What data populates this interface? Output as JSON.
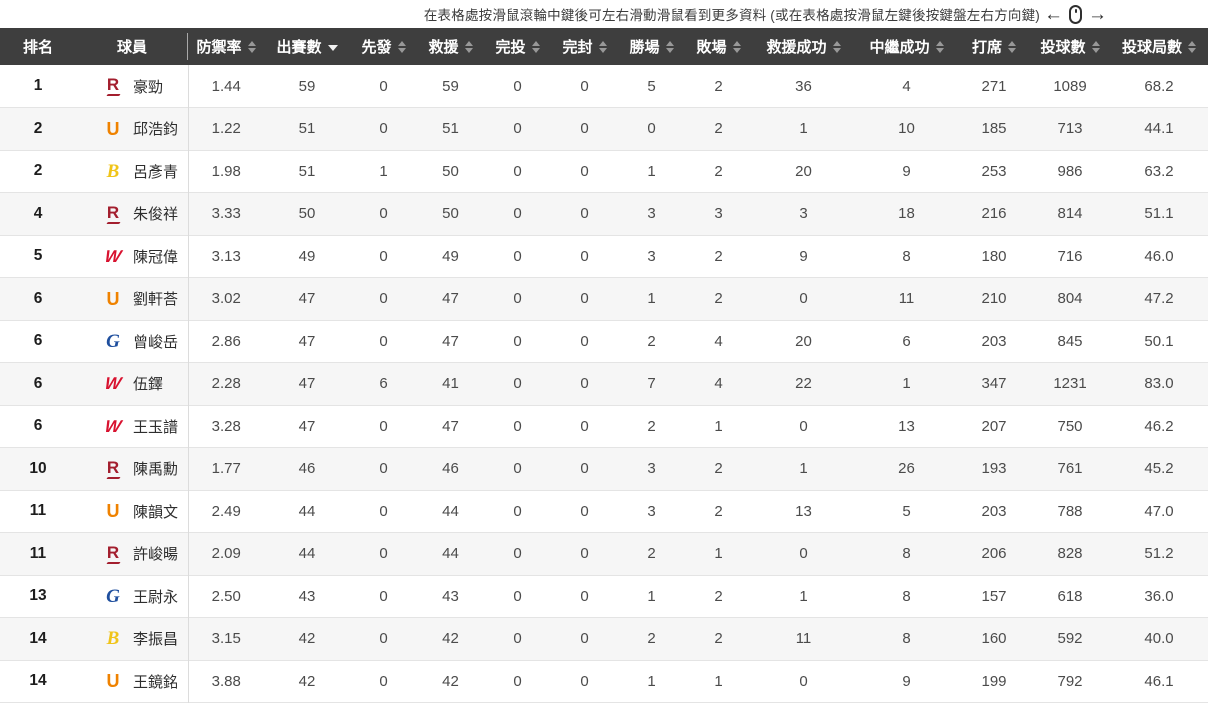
{
  "scroll_hint": {
    "text": "在表格處按滑鼠滾輪中鍵後可左右滑動滑鼠看到更多資料 (或在表格處按滑鼠左鍵後按鍵盤左右方向鍵)",
    "left_arrow": "←",
    "right_arrow": "→",
    "mouse_icon": "mouse-scroll-icon"
  },
  "table": {
    "header_bg": "#3e3e3e",
    "header_text_color": "#ffffff",
    "sorted_column": "出賽數",
    "sort_direction": "desc",
    "columns": [
      {
        "key": "rank",
        "label": "排名",
        "sortable": false
      },
      {
        "key": "player",
        "label": "球員",
        "sortable": false
      },
      {
        "key": "era",
        "label": "防禦率",
        "sortable": true
      },
      {
        "key": "games",
        "label": "出賽數",
        "sortable": true,
        "sorted": "desc"
      },
      {
        "key": "starts",
        "label": "先發",
        "sortable": true
      },
      {
        "key": "relief",
        "label": "救援",
        "sortable": true
      },
      {
        "key": "cg",
        "label": "完投",
        "sortable": true
      },
      {
        "key": "sho",
        "label": "完封",
        "sortable": true
      },
      {
        "key": "wins",
        "label": "勝場",
        "sortable": true
      },
      {
        "key": "losses",
        "label": "敗場",
        "sortable": true
      },
      {
        "key": "saves",
        "label": "救援成功",
        "sortable": true
      },
      {
        "key": "holds",
        "label": "中繼成功",
        "sortable": true
      },
      {
        "key": "bf",
        "label": "打席",
        "sortable": true
      },
      {
        "key": "pitches",
        "label": "投球數",
        "sortable": true
      },
      {
        "key": "ip",
        "label": "投球局數",
        "sortable": true
      }
    ],
    "teams": {
      "rakuten": {
        "letter": "R",
        "color": "#a31e2e"
      },
      "unilions": {
        "letter": "U",
        "color": "#ef8200"
      },
      "brothers": {
        "letter": "B",
        "color": "#f0c419"
      },
      "dragons": {
        "letter": "W",
        "color": "#d8122f"
      },
      "guardians": {
        "letter": "G",
        "color": "#1f4f9e"
      }
    },
    "rows": [
      {
        "rank": "1",
        "team": "rakuten",
        "player": "豪勁",
        "stats": [
          "1.44",
          "59",
          "0",
          "59",
          "0",
          "0",
          "5",
          "2",
          "36",
          "4",
          "271",
          "1089",
          "68.2"
        ]
      },
      {
        "rank": "2",
        "team": "unilions",
        "player": "邱浩鈞",
        "stats": [
          "1.22",
          "51",
          "0",
          "51",
          "0",
          "0",
          "0",
          "2",
          "1",
          "10",
          "185",
          "713",
          "44.1"
        ]
      },
      {
        "rank": "2",
        "team": "brothers",
        "player": "呂彥青",
        "stats": [
          "1.98",
          "51",
          "1",
          "50",
          "0",
          "0",
          "1",
          "2",
          "20",
          "9",
          "253",
          "986",
          "63.2"
        ]
      },
      {
        "rank": "4",
        "team": "rakuten",
        "player": "朱俊祥",
        "stats": [
          "3.33",
          "50",
          "0",
          "50",
          "0",
          "0",
          "3",
          "3",
          "3",
          "18",
          "216",
          "814",
          "51.1"
        ]
      },
      {
        "rank": "5",
        "team": "dragons",
        "player": "陳冠偉",
        "stats": [
          "3.13",
          "49",
          "0",
          "49",
          "0",
          "0",
          "3",
          "2",
          "9",
          "8",
          "180",
          "716",
          "46.0"
        ]
      },
      {
        "rank": "6",
        "team": "unilions",
        "player": "劉軒荅",
        "stats": [
          "3.02",
          "47",
          "0",
          "47",
          "0",
          "0",
          "1",
          "2",
          "0",
          "11",
          "210",
          "804",
          "47.2"
        ]
      },
      {
        "rank": "6",
        "team": "guardians",
        "player": "曾峻岳",
        "stats": [
          "2.86",
          "47",
          "0",
          "47",
          "0",
          "0",
          "2",
          "4",
          "20",
          "6",
          "203",
          "845",
          "50.1"
        ]
      },
      {
        "rank": "6",
        "team": "dragons",
        "player": "伍鐸",
        "stats": [
          "2.28",
          "47",
          "6",
          "41",
          "0",
          "0",
          "7",
          "4",
          "22",
          "1",
          "347",
          "1231",
          "83.0"
        ]
      },
      {
        "rank": "6",
        "team": "dragons",
        "player": "王玉譜",
        "stats": [
          "3.28",
          "47",
          "0",
          "47",
          "0",
          "0",
          "2",
          "1",
          "0",
          "13",
          "207",
          "750",
          "46.2"
        ]
      },
      {
        "rank": "10",
        "team": "rakuten",
        "player": "陳禹勳",
        "stats": [
          "1.77",
          "46",
          "0",
          "46",
          "0",
          "0",
          "3",
          "2",
          "1",
          "26",
          "193",
          "761",
          "45.2"
        ]
      },
      {
        "rank": "11",
        "team": "unilions",
        "player": "陳韻文",
        "stats": [
          "2.49",
          "44",
          "0",
          "44",
          "0",
          "0",
          "3",
          "2",
          "13",
          "5",
          "203",
          "788",
          "47.0"
        ]
      },
      {
        "rank": "11",
        "team": "rakuten",
        "player": "許峻暘",
        "stats": [
          "2.09",
          "44",
          "0",
          "44",
          "0",
          "0",
          "2",
          "1",
          "0",
          "8",
          "206",
          "828",
          "51.2"
        ]
      },
      {
        "rank": "13",
        "team": "guardians",
        "player": "王尉永",
        "stats": [
          "2.50",
          "43",
          "0",
          "43",
          "0",
          "0",
          "1",
          "2",
          "1",
          "8",
          "157",
          "618",
          "36.0"
        ]
      },
      {
        "rank": "14",
        "team": "brothers",
        "player": "李振昌",
        "stats": [
          "3.15",
          "42",
          "0",
          "42",
          "0",
          "0",
          "2",
          "2",
          "11",
          "8",
          "160",
          "592",
          "40.0"
        ]
      },
      {
        "rank": "14",
        "team": "unilions",
        "player": "王鏡銘",
        "stats": [
          "3.88",
          "42",
          "0",
          "42",
          "0",
          "0",
          "1",
          "1",
          "0",
          "9",
          "199",
          "792",
          "46.1"
        ]
      }
    ]
  }
}
